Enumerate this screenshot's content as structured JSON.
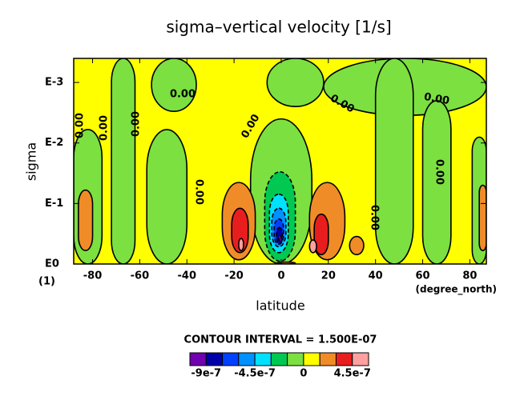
{
  "chart_data": {
    "type": "contour",
    "title": "sigma–vertical velocity [1/s]",
    "x_label": "latitude",
    "x_unit": "(degree_north)",
    "y_label": "sigma",
    "y_unit": "(1)",
    "xlim": [
      -88,
      87
    ],
    "xticks": [
      -80,
      -60,
      -40,
      -20,
      0,
      20,
      40,
      60,
      80
    ],
    "ylim": [
      1,
      0.0004
    ],
    "log_y": true,
    "yticks": [
      {
        "value": 1,
        "label": "E0"
      },
      {
        "value": 0.1,
        "label": "E-1"
      },
      {
        "value": 0.01,
        "label": "E-2"
      },
      {
        "value": 0.001,
        "label": "E-3"
      }
    ],
    "contour_interval_label": "CONTOUR INTERVAL = 1.500E-07",
    "levels": [
      -1.05e-06,
      -9e-07,
      -7.5e-07,
      -6e-07,
      -4.5e-07,
      -3e-07,
      -1.5e-07,
      0,
      1.5e-07,
      3e-07,
      4.5e-07,
      6e-07
    ],
    "colors": [
      "#7000b0",
      "#0000a8",
      "#0040ff",
      "#0090ff",
      "#00e0ff",
      "#00c850",
      "#7ce040",
      "#ffff00",
      "#f08c28",
      "#e81e1e",
      "#ffa0a0"
    ],
    "colorbar_ticks": [
      -9e-07,
      -4.5e-07,
      0,
      4.5e-07
    ],
    "contour_labels": [
      "0.00",
      "0.00",
      "0.00",
      "0.00",
      "0.00",
      "0.00",
      "0.00",
      "0.00",
      "0.00",
      "0.00"
    ],
    "regions": [
      {
        "lat": [
          -88,
          87
        ],
        "sigma": [
          0.0004,
          1
        ],
        "value": 0
      },
      {
        "lat": [
          -88,
          -76
        ],
        "sigma": [
          0.006,
          1
        ],
        "value": -1.5e-07
      },
      {
        "lat": [
          -72,
          -62
        ],
        "sigma": [
          0.0004,
          1
        ],
        "value": -1.5e-07
      },
      {
        "lat": [
          -57,
          -40
        ],
        "sigma": [
          0.006,
          1
        ],
        "value": -1.5e-07
      },
      {
        "lat": [
          -55,
          -36
        ],
        "sigma": [
          0.0004,
          0.003
        ],
        "value": -1.5e-07
      },
      {
        "lat": [
          -13,
          13
        ],
        "sigma": [
          0.004,
          1
        ],
        "value": -1.5e-07
      },
      {
        "lat": [
          -6,
          18
        ],
        "sigma": [
          0.0004,
          0.0025
        ],
        "value": -1.5e-07
      },
      {
        "lat": [
          18,
          87
        ],
        "sigma": [
          0.0004,
          0.0035
        ],
        "value": -1.5e-07
      },
      {
        "lat": [
          40,
          56
        ],
        "sigma": [
          0.0004,
          1
        ],
        "value": -1.5e-07
      },
      {
        "lat": [
          60,
          72
        ],
        "sigma": [
          0.002,
          1
        ],
        "value": -1.5e-07
      },
      {
        "lat": [
          81,
          87
        ],
        "sigma": [
          0.008,
          1
        ],
        "value": -1.5e-07
      },
      {
        "lat": [
          -86,
          -80
        ],
        "sigma": [
          0.06,
          0.6
        ],
        "value": 1.5e-07
      },
      {
        "lat": [
          -25,
          -11
        ],
        "sigma": [
          0.045,
          0.85
        ],
        "value": 1.5e-07
      },
      {
        "lat": [
          12,
          27
        ],
        "sigma": [
          0.045,
          0.85
        ],
        "value": 1.5e-07
      },
      {
        "lat": [
          29,
          35
        ],
        "sigma": [
          0.35,
          0.7
        ],
        "value": 1.5e-07
      },
      {
        "lat": [
          84,
          87
        ],
        "sigma": [
          0.05,
          0.6
        ],
        "value": 1.5e-07
      },
      {
        "lat": [
          -21,
          -14
        ],
        "sigma": [
          0.12,
          0.65
        ],
        "value": 3e-07
      },
      {
        "lat": [
          14,
          20
        ],
        "sigma": [
          0.15,
          0.7
        ],
        "value": 3e-07
      },
      {
        "lat": [
          -18,
          -16
        ],
        "sigma": [
          0.38,
          0.6
        ],
        "value": 4.5e-07
      },
      {
        "lat": [
          12,
          15
        ],
        "sigma": [
          0.4,
          0.65
        ],
        "value": 4.5e-07
      },
      {
        "lat": [
          -7,
          6
        ],
        "sigma": [
          0.03,
          0.9
        ],
        "value": -3e-07
      },
      {
        "lat": [
          -5,
          3
        ],
        "sigma": [
          0.07,
          0.65
        ],
        "value": -4.5e-07
      },
      {
        "lat": [
          -4,
          2
        ],
        "sigma": [
          0.12,
          0.52
        ],
        "value": -6e-07
      },
      {
        "lat": [
          -3,
          1
        ],
        "sigma": [
          0.18,
          0.47
        ],
        "value": -7.5e-07
      },
      {
        "lat": [
          -2,
          0.5
        ],
        "sigma": [
          0.25,
          0.45
        ],
        "value": -9e-07
      },
      {
        "lat": [
          -1,
          0
        ],
        "sigma": [
          0.34,
          0.42
        ],
        "value": -1.05e-06
      },
      {
        "lat": [
          -2,
          6
        ],
        "sigma": [
          0.93,
          1
        ],
        "value": 1.5e-07
      }
    ]
  }
}
